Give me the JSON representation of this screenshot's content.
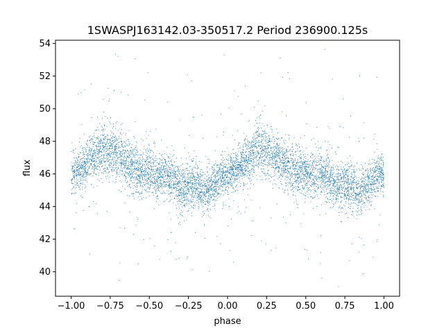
{
  "chart_data": {
    "type": "scatter",
    "title": "1SWASPJ163142.03-350517.2 Period 236900.125s",
    "xlabel": "phase",
    "ylabel": "flux",
    "xlim": [
      -1.1,
      1.1
    ],
    "ylim": [
      38.5,
      54.2
    ],
    "xticks": [
      -1.0,
      -0.75,
      -0.5,
      -0.25,
      0.0,
      0.25,
      0.5,
      0.75,
      1.0
    ],
    "xtick_labels": [
      "−1.00",
      "−0.75",
      "−0.50",
      "−0.25",
      "0.00",
      "0.25",
      "0.50",
      "0.75",
      "1.00"
    ],
    "yticks": [
      40,
      42,
      44,
      46,
      48,
      50,
      52,
      54
    ],
    "ytick_labels": [
      "40",
      "42",
      "44",
      "46",
      "48",
      "50",
      "52",
      "54"
    ],
    "grid": false,
    "marker_color": "#1f77b4",
    "series": [
      {
        "x": [
          -1.0,
          -0.95,
          -0.9,
          -0.85,
          -0.8,
          -0.75,
          -0.7,
          -0.65,
          -0.6,
          -0.55,
          -0.5,
          -0.45,
          -0.4,
          -0.35,
          -0.3,
          -0.25,
          -0.2,
          -0.15,
          -0.1,
          -0.05,
          0.0,
          0.05,
          0.1,
          0.15,
          0.2,
          0.25,
          0.3,
          0.35,
          0.4,
          0.45,
          0.5,
          0.55,
          0.6,
          0.65,
          0.7,
          0.75,
          0.8,
          0.85,
          0.9,
          0.95,
          1.0
        ],
        "y": [
          46.0,
          46.3,
          46.6,
          47.0,
          47.6,
          47.3,
          47.1,
          46.8,
          46.4,
          46.0,
          46.2,
          45.8,
          46.0,
          45.6,
          45.2,
          45.3,
          45.2,
          44.9,
          45.2,
          45.8,
          46.0,
          46.3,
          46.6,
          47.0,
          47.6,
          47.3,
          47.1,
          46.8,
          46.4,
          46.0,
          46.2,
          45.8,
          46.0,
          45.6,
          45.2,
          45.3,
          45.2,
          44.9,
          45.2,
          45.8,
          46.0
        ],
        "spread": [
          0.8,
          0.8,
          0.9,
          1.0,
          1.1,
          1.1,
          1.0,
          1.0,
          1.0,
          1.0,
          1.0,
          1.0,
          0.9,
          0.9,
          1.0,
          1.0,
          1.0,
          0.9,
          0.8,
          0.7,
          0.8,
          0.8,
          0.9,
          1.0,
          1.1,
          1.1,
          1.0,
          1.0,
          1.0,
          1.0,
          1.0,
          1.0,
          0.9,
          0.9,
          1.0,
          1.0,
          1.0,
          0.9,
          0.8,
          0.7,
          0.8
        ]
      }
    ]
  }
}
